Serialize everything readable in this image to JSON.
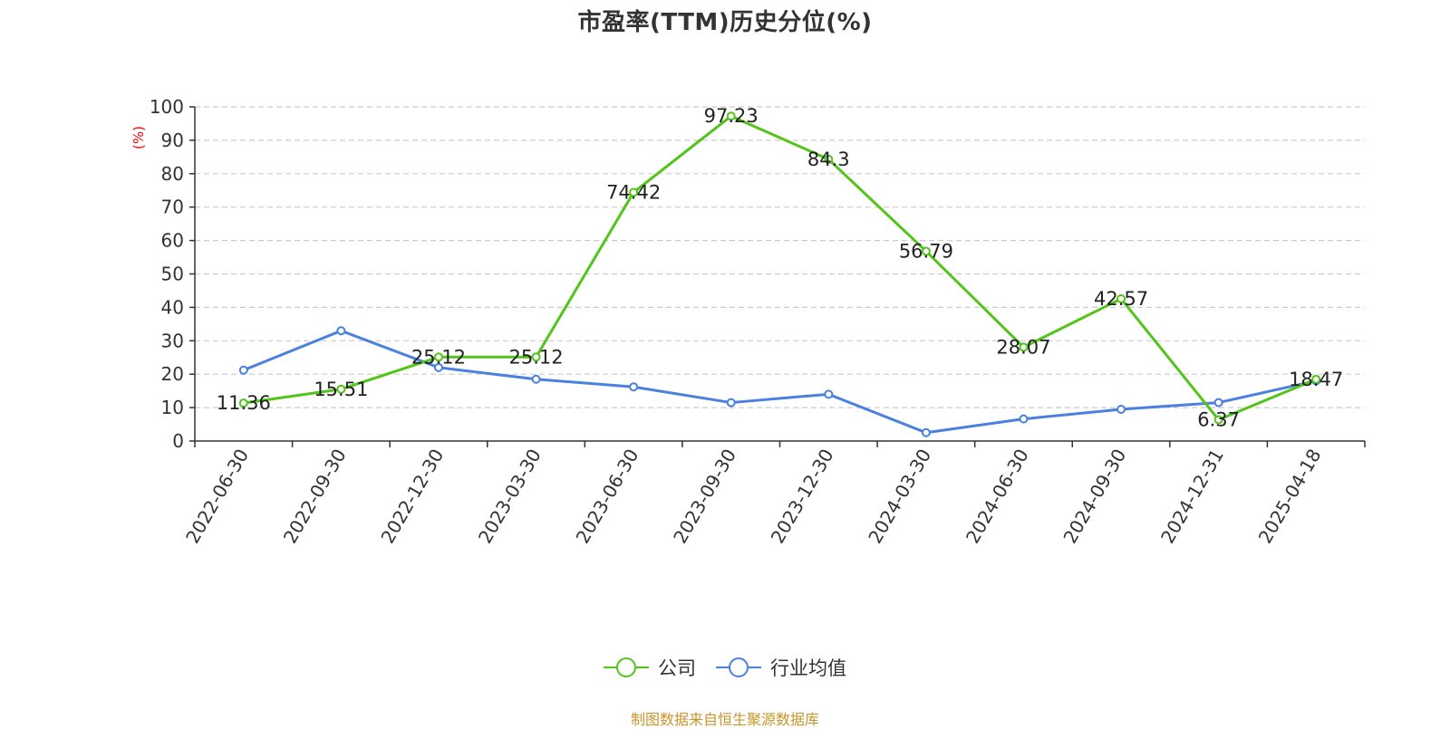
{
  "colors": {
    "company": "#52c41a",
    "industry": "#4a80e0",
    "grid": "#cccccc",
    "axis": "#333333",
    "unit": "#ff0000",
    "source": "#c8952b"
  },
  "legend": {
    "company_label": "公司",
    "industry_label": "行业均值"
  },
  "source_note": "制图数据来自恒生聚源数据库",
  "chart_data": {
    "type": "line",
    "title": "市盈率(TTM)历史分位(%)",
    "ylabel": "(%)",
    "xlabel": "",
    "ylim": [
      0,
      100
    ],
    "yticks": [
      0,
      10,
      20,
      30,
      40,
      50,
      60,
      70,
      80,
      90,
      100
    ],
    "grid": true,
    "legend_position": "bottom-center",
    "categories": [
      "2022-06-30",
      "2022-09-30",
      "2022-12-30",
      "2023-03-30",
      "2023-06-30",
      "2023-09-30",
      "2023-12-30",
      "2024-03-30",
      "2024-06-30",
      "2024-09-30",
      "2024-12-31",
      "2025-04-18"
    ],
    "series": [
      {
        "name": "公司",
        "values": [
          11.36,
          15.51,
          25.12,
          25.12,
          74.42,
          97.23,
          84.3,
          56.79,
          28.07,
          42.57,
          6.37,
          18.47
        ],
        "labels": [
          "11.36",
          "15.51",
          "25.12",
          "25.12",
          "74.42",
          "97.23",
          "84.3",
          "56.79",
          "28.07",
          "42.57",
          "6.37",
          "18.47"
        ]
      },
      {
        "name": "行业均值",
        "values": [
          21.2,
          33.0,
          22.0,
          18.5,
          16.2,
          11.5,
          14.0,
          2.5,
          6.6,
          9.5,
          11.5,
          18.0
        ]
      }
    ]
  }
}
